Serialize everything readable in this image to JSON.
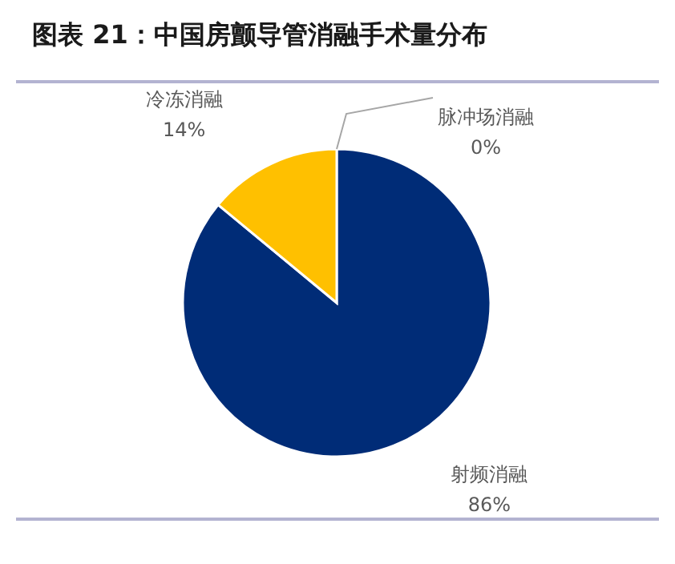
{
  "chart_data": {
    "type": "pie",
    "title": "图表 21：中国房颤导管消融手术量分布",
    "categories": [
      "射频消融",
      "冷冻消融",
      "脉冲场消融"
    ],
    "values": [
      86,
      14,
      0
    ],
    "value_labels": [
      "86%",
      "14%",
      "0%"
    ],
    "colors": [
      "#002c77",
      "#ffc000",
      "#a6a6a6"
    ]
  }
}
